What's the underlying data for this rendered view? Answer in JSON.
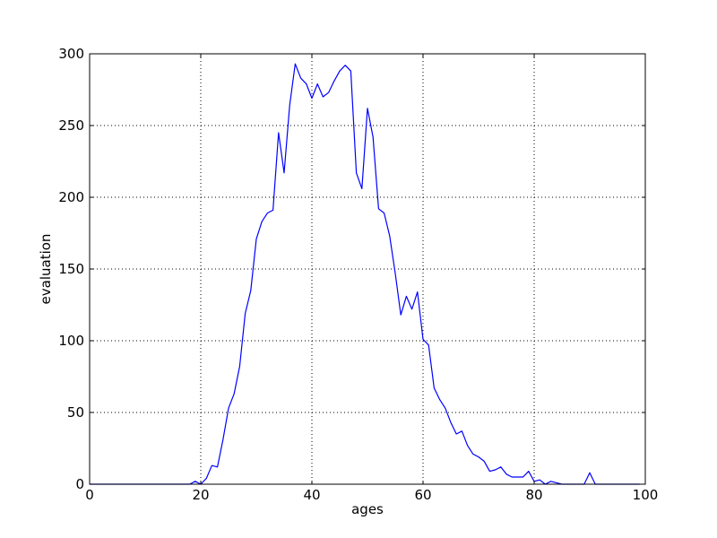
{
  "chart_data": {
    "type": "line",
    "title": "",
    "xlabel": "ages",
    "ylabel": "evaluation",
    "xlim": [
      0,
      100
    ],
    "ylim": [
      0,
      300
    ],
    "xticks": [
      0,
      20,
      40,
      60,
      80,
      100
    ],
    "yticks": [
      0,
      50,
      100,
      150,
      200,
      250,
      300
    ],
    "xtick_labels": [
      "0",
      "20",
      "40",
      "60",
      "80",
      "100"
    ],
    "ytick_labels": [
      "0",
      "50",
      "100",
      "150",
      "200",
      "250",
      "300"
    ],
    "grid": true,
    "grid_style": "dotted",
    "legend": "none",
    "line_color": "#0000ff",
    "series": [
      {
        "x": [
          0,
          1,
          2,
          3,
          4,
          5,
          6,
          7,
          8,
          9,
          10,
          11,
          12,
          13,
          14,
          15,
          16,
          17,
          18,
          19,
          20,
          21,
          22,
          23,
          24,
          25,
          26,
          27,
          28,
          29,
          30,
          31,
          32,
          33,
          34,
          35,
          36,
          37,
          38,
          39,
          40,
          41,
          42,
          43,
          44,
          45,
          46,
          47,
          48,
          49,
          50,
          51,
          52,
          53,
          54,
          55,
          56,
          57,
          58,
          59,
          60,
          61,
          62,
          63,
          64,
          65,
          66,
          67,
          68,
          69,
          70,
          71,
          72,
          73,
          74,
          75,
          76,
          77,
          78,
          79,
          80,
          81,
          82,
          83,
          84,
          85,
          86,
          87,
          88,
          89,
          90,
          91,
          92,
          93,
          94,
          95,
          96,
          97,
          98,
          99
        ],
        "values": [
          0,
          0,
          0,
          0,
          0,
          0,
          0,
          0,
          0,
          0,
          0,
          0,
          0,
          0,
          0,
          0,
          0,
          0,
          0,
          2,
          0,
          4,
          13,
          12,
          31,
          53,
          63,
          82,
          119,
          135,
          171,
          183,
          189,
          191,
          245,
          217,
          264,
          293,
          283,
          279,
          269,
          279,
          270,
          273,
          281,
          288,
          292,
          288,
          217,
          206,
          262,
          242,
          192,
          189,
          173,
          147,
          118,
          131,
          122,
          134,
          101,
          97,
          67,
          59,
          53,
          43,
          35,
          37,
          27,
          21,
          19,
          16,
          9,
          10,
          12,
          7,
          5,
          5,
          5,
          9,
          2,
          3,
          0,
          2,
          1,
          0,
          0,
          0,
          0,
          0,
          8,
          0,
          0,
          0,
          0,
          0,
          0,
          0,
          0,
          0
        ]
      }
    ]
  }
}
